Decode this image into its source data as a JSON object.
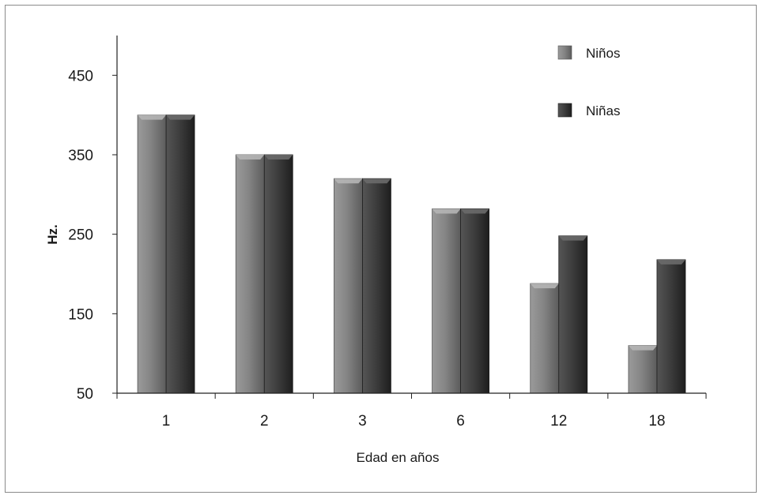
{
  "chart_data": {
    "type": "bar",
    "categories": [
      "1",
      "2",
      "3",
      "6",
      "12",
      "18"
    ],
    "series": [
      {
        "name": "Niños",
        "values": [
          400,
          350,
          320,
          282,
          188,
          110
        ],
        "color": "#7a7a7a"
      },
      {
        "name": "Niñas",
        "values": [
          400,
          350,
          320,
          282,
          248,
          218
        ],
        "color": "#3a3a3a"
      }
    ],
    "title": "",
    "xlabel": "Edad en años",
    "ylabel": "Hz.",
    "ylim": [
      50,
      500
    ],
    "yticks": [
      50,
      150,
      250,
      350,
      450
    ],
    "grid": false,
    "legend_position": "top-right"
  }
}
